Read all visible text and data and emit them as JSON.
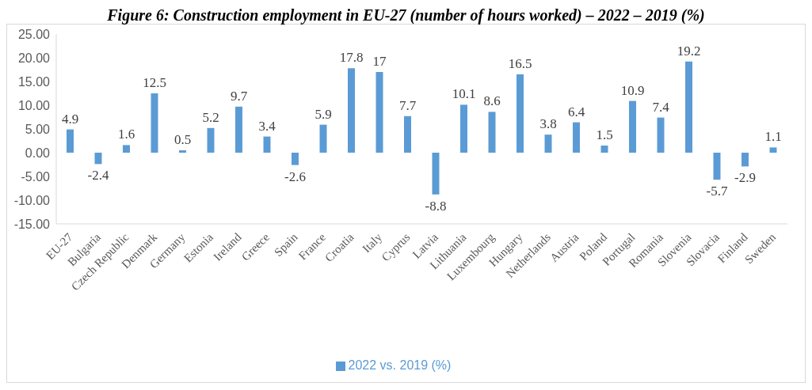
{
  "chart_data": {
    "type": "bar",
    "title": "Figure 6: Construction employment in EU-27 (number of hours worked) – 2022 – 2019 (%)",
    "categories": [
      "EU-27",
      "Bulgaria",
      "Czech Republic",
      "Denmark",
      "Germany",
      "Estonia",
      "Ireland",
      "Greece",
      "Spain",
      "France",
      "Croatia",
      "Italy",
      "Cyprus",
      "Latvia",
      "Lithuania",
      "Luxembourg",
      "Hungary",
      "Netherlands",
      "Austria",
      "Poland",
      "Portugal",
      "Romania",
      "Slovenia",
      "Slovacia",
      "Finland",
      "Sweden"
    ],
    "series": [
      {
        "name": "2022 vs. 2019 (%)",
        "color": "#5b9bd5",
        "values": [
          4.9,
          -2.4,
          1.6,
          12.5,
          0.5,
          5.2,
          9.7,
          3.4,
          -2.6,
          5.9,
          17.8,
          17,
          7.7,
          -8.8,
          10.1,
          8.6,
          16.5,
          3.8,
          6.4,
          1.5,
          10.9,
          7.4,
          19.2,
          -5.7,
          -2.9,
          1.1
        ]
      }
    ],
    "ylim": [
      -15,
      25
    ],
    "yticks": [
      {
        "value": -15,
        "label": "-15.00"
      },
      {
        "value": -10,
        "label": "-10.00"
      },
      {
        "value": -5,
        "label": "-5.00"
      },
      {
        "value": 0,
        "label": "0.00"
      },
      {
        "value": 5,
        "label": "5.00"
      },
      {
        "value": 10,
        "label": "10.00"
      },
      {
        "value": 15,
        "label": "15.00"
      },
      {
        "value": 20,
        "label": "20.00"
      },
      {
        "value": 25,
        "label": "25.00"
      }
    ],
    "data_labels": true,
    "grid": false,
    "legend": "bottom"
  }
}
